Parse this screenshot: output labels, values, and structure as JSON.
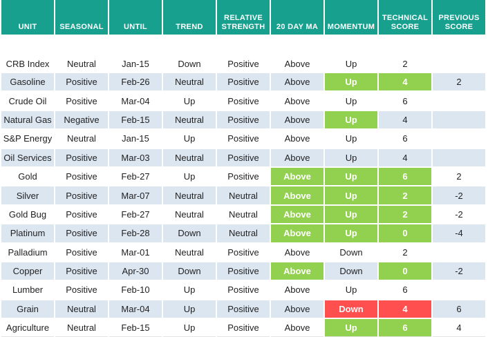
{
  "table": {
    "header": [
      "UNIT",
      "SEASONAL",
      "UNTIL",
      "TREND",
      "RELATIVE STRENGTH",
      "20 DAY MA",
      "MOMENTUM",
      "TECHNICAL SCORE",
      "PREVIOUS SCORE"
    ],
    "rows": [
      [
        "CRB Index",
        "Neutral",
        "Jan-15",
        "Down",
        "Positive",
        "Above",
        "Up",
        2,
        null
      ],
      [
        "Gasoline",
        "Positive",
        "Feb-26",
        "Neutral",
        "Positive",
        "Above",
        "Up",
        4,
        2
      ],
      [
        "Crude Oil",
        "Positive",
        "Mar-04",
        "Up",
        "Positive",
        "Above",
        "Up",
        6,
        null
      ],
      [
        "Natural Gas",
        "Negative",
        "Feb-15",
        "Neutral",
        "Positive",
        "Above",
        "Up",
        4,
        null
      ],
      [
        "S&P Energy",
        "Neutral",
        "Jan-15",
        "Up",
        "Positive",
        "Above",
        "Up",
        6,
        null
      ],
      [
        "Oil Services",
        "Positive",
        "Mar-03",
        "Neutral",
        "Positive",
        "Above",
        "Up",
        4,
        null
      ],
      [
        "Gold",
        "Positive",
        "Feb-27",
        "Up",
        "Positive",
        "Above",
        "Up",
        6,
        2
      ],
      [
        "Silver",
        "Positive",
        "Mar-07",
        "Neutral",
        "Neutral",
        "Above",
        "Up",
        2,
        -2
      ],
      [
        "Gold Bug",
        "Positive",
        "Feb-27",
        "Neutral",
        "Neutral",
        "Above",
        "Up",
        2,
        -2
      ],
      [
        "Platinum",
        "Positive",
        "Feb-28",
        "Down",
        "Neutral",
        "Above",
        "Up",
        0,
        -4
      ],
      [
        "Palladium",
        "Positive",
        "Mar-01",
        "Neutral",
        "Positive",
        "Above",
        "Down",
        2,
        null
      ],
      [
        "Copper",
        "Positive",
        "Apr-30",
        "Down",
        "Positive",
        "Above",
        "Down",
        0,
        -2
      ],
      [
        "Lumber",
        "Positive",
        "Feb-10",
        "Up",
        "Positive",
        "Above",
        "Up",
        6,
        null
      ],
      [
        "Grain",
        "Neutral",
        "Mar-04",
        "Up",
        "Positive",
        "Above",
        "Down",
        4,
        6
      ],
      [
        "Agriculture",
        "Neutral",
        "Feb-15",
        "Up",
        "Positive",
        "Above",
        "Up",
        6,
        4
      ]
    ]
  }
}
